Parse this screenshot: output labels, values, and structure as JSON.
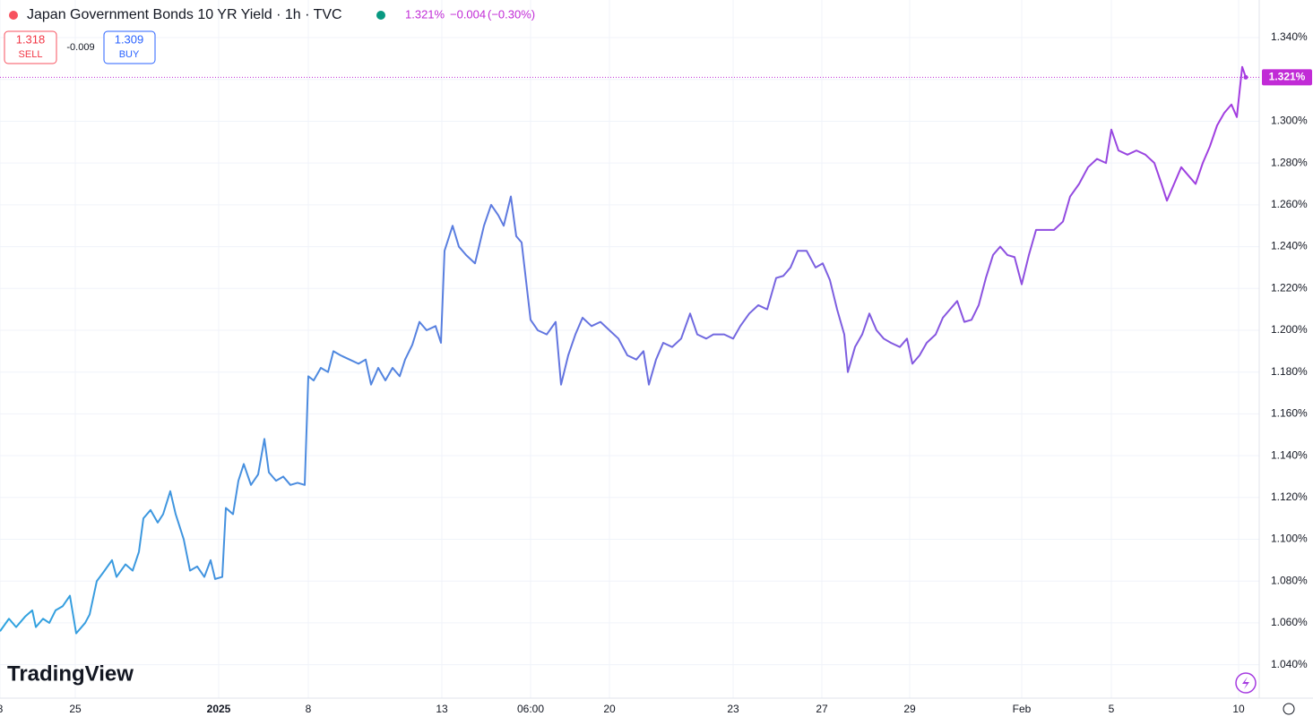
{
  "chart_data": {
    "type": "line",
    "title": "Japan Government Bonds 10 YR Yield · 1h · TVC",
    "price": "1.321%",
    "change": "−0.004",
    "change_pct": "(−0.30%)",
    "sell": "1.318",
    "sell_label": "SELL",
    "spread": "-0.009",
    "buy": "1.309",
    "buy_label": "BUY",
    "watermark": "TradingView",
    "last_value": {
      "value": 1.321,
      "label": "1.321%"
    },
    "last_color": "#c12bd6",
    "grid": true,
    "xlim": [
      0,
      1405
    ],
    "ylim": [
      1.024,
      1.358
    ],
    "xticks": [
      {
        "value": 0,
        "label": "8"
      },
      {
        "value": 84,
        "label": "25"
      },
      {
        "value": 244,
        "label": "2025"
      },
      {
        "value": 344,
        "label": "8"
      },
      {
        "value": 493,
        "label": "13"
      },
      {
        "value": 592,
        "label": "06:00"
      },
      {
        "value": 680,
        "label": "20"
      },
      {
        "value": 818,
        "label": "23"
      },
      {
        "value": 917,
        "label": "27"
      },
      {
        "value": 1015,
        "label": "29"
      },
      {
        "value": 1140,
        "label": "Feb"
      },
      {
        "value": 1240,
        "label": "5"
      },
      {
        "value": 1382,
        "label": "10"
      }
    ],
    "yticks": [
      {
        "value": 1.04,
        "label": "1.040%"
      },
      {
        "value": 1.06,
        "label": "1.060%"
      },
      {
        "value": 1.08,
        "label": "1.080%"
      },
      {
        "value": 1.1,
        "label": "1.100%"
      },
      {
        "value": 1.12,
        "label": "1.120%"
      },
      {
        "value": 1.14,
        "label": "1.140%"
      },
      {
        "value": 1.16,
        "label": "1.160%"
      },
      {
        "value": 1.18,
        "label": "1.180%"
      },
      {
        "value": 1.2,
        "label": "1.200%"
      },
      {
        "value": 1.22,
        "label": "1.220%"
      },
      {
        "value": 1.24,
        "label": "1.240%"
      },
      {
        "value": 1.26,
        "label": "1.260%"
      },
      {
        "value": 1.28,
        "label": "1.280%"
      },
      {
        "value": 1.3,
        "label": "1.300%"
      },
      {
        "value": 1.32,
        "label": "1.320%"
      },
      {
        "value": 1.34,
        "label": "1.340%"
      }
    ],
    "series": [
      {
        "color_start": "#2fa4df",
        "color_end": "#a53be0",
        "x": [
          0,
          10,
          18,
          28,
          36,
          40,
          48,
          55,
          62,
          70,
          78,
          85,
          95,
          100,
          108,
          115,
          125,
          130,
          140,
          148,
          155,
          160,
          168,
          176,
          182,
          190,
          196,
          205,
          212,
          220,
          228,
          235,
          240,
          248,
          252,
          260,
          266,
          272,
          280,
          288,
          295,
          300,
          308,
          316,
          324,
          332,
          340,
          344,
          350,
          358,
          366,
          372,
          380,
          390,
          400,
          408,
          414,
          422,
          430,
          438,
          446,
          452,
          460,
          468,
          476,
          486,
          492,
          496,
          505,
          512,
          520,
          530,
          540,
          548,
          556,
          562,
          570,
          576,
          582,
          592,
          600,
          610,
          620,
          626,
          634,
          642,
          650,
          660,
          670,
          680,
          690,
          700,
          710,
          718,
          724,
          732,
          740,
          750,
          760,
          770,
          778,
          788,
          796,
          808,
          818,
          826,
          836,
          846,
          856,
          866,
          874,
          882,
          890,
          900,
          910,
          918,
          926,
          934,
          942,
          946,
          954,
          962,
          970,
          978,
          986,
          994,
          1004,
          1012,
          1018,
          1026,
          1034,
          1044,
          1052,
          1060,
          1068,
          1076,
          1084,
          1092,
          1100,
          1108,
          1116,
          1124,
          1132,
          1140,
          1148,
          1156,
          1166,
          1176,
          1186,
          1194,
          1204,
          1214,
          1224,
          1234,
          1240,
          1248,
          1258,
          1268,
          1278,
          1288,
          1296,
          1302,
          1310,
          1318,
          1326,
          1334,
          1342,
          1350,
          1358,
          1366,
          1374,
          1380,
          1386,
          1390
        ],
        "values": [
          1.056,
          1.062,
          1.058,
          1.063,
          1.066,
          1.058,
          1.062,
          1.06,
          1.066,
          1.068,
          1.073,
          1.055,
          1.06,
          1.064,
          1.08,
          1.084,
          1.09,
          1.082,
          1.088,
          1.085,
          1.094,
          1.11,
          1.114,
          1.108,
          1.112,
          1.123,
          1.112,
          1.1,
          1.085,
          1.087,
          1.082,
          1.09,
          1.081,
          1.082,
          1.115,
          1.112,
          1.128,
          1.136,
          1.126,
          1.131,
          1.148,
          1.132,
          1.128,
          1.13,
          1.126,
          1.127,
          1.126,
          1.178,
          1.176,
          1.182,
          1.18,
          1.19,
          1.188,
          1.186,
          1.184,
          1.186,
          1.174,
          1.182,
          1.176,
          1.182,
          1.178,
          1.186,
          1.193,
          1.204,
          1.2,
          1.202,
          1.194,
          1.238,
          1.25,
          1.24,
          1.236,
          1.232,
          1.25,
          1.26,
          1.255,
          1.25,
          1.264,
          1.245,
          1.242,
          1.205,
          1.2,
          1.198,
          1.204,
          1.174,
          1.188,
          1.198,
          1.206,
          1.202,
          1.204,
          1.2,
          1.196,
          1.188,
          1.186,
          1.19,
          1.174,
          1.186,
          1.194,
          1.192,
          1.196,
          1.208,
          1.198,
          1.196,
          1.198,
          1.198,
          1.196,
          1.202,
          1.208,
          1.212,
          1.21,
          1.225,
          1.226,
          1.23,
          1.238,
          1.238,
          1.23,
          1.232,
          1.224,
          1.21,
          1.198,
          1.18,
          1.192,
          1.198,
          1.208,
          1.2,
          1.196,
          1.194,
          1.192,
          1.196,
          1.184,
          1.188,
          1.194,
          1.198,
          1.206,
          1.21,
          1.214,
          1.204,
          1.205,
          1.212,
          1.225,
          1.236,
          1.24,
          1.236,
          1.235,
          1.222,
          1.236,
          1.248,
          1.248,
          1.248,
          1.252,
          1.264,
          1.27,
          1.278,
          1.282,
          1.28,
          1.296,
          1.286,
          1.284,
          1.286,
          1.284,
          1.28,
          1.27,
          1.262,
          1.27,
          1.278,
          1.274,
          1.27,
          1.28,
          1.288,
          1.298,
          1.304,
          1.308,
          1.302,
          1.326,
          1.321
        ]
      }
    ]
  }
}
